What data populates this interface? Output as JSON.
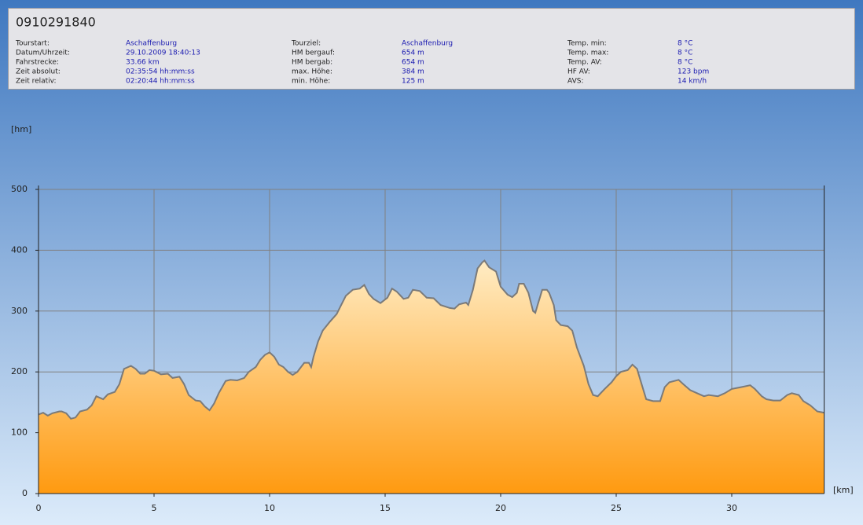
{
  "header": {
    "title": "0910291840",
    "info": [
      {
        "label": "Tourstart:",
        "value": "Aschaffenburg"
      },
      {
        "label": "Datum/Uhrzeit:",
        "value": "29.10.2009 18:40:13"
      },
      {
        "label": "Fahrstrecke:",
        "value": "33.66 km"
      },
      {
        "label": "Zeit absolut:",
        "value": "02:35:54 hh:mm:ss"
      },
      {
        "label": "Zeit relativ:",
        "value": "02:20:44 hh:mm:ss"
      },
      {
        "label": "Tourziel:",
        "value": "Aschaffenburg"
      },
      {
        "label": "HM bergauf:",
        "value": "654 m"
      },
      {
        "label": "HM bergab:",
        "value": "654 m"
      },
      {
        "label": "max. Höhe:",
        "value": "384 m"
      },
      {
        "label": "min. Höhe:",
        "value": "125 m"
      },
      {
        "label": "Temp. min:",
        "value": "8 °C"
      },
      {
        "label": "Temp. max:",
        "value": "8 °C"
      },
      {
        "label": "Temp. AV:",
        "value": "8 °C"
      },
      {
        "label": "HF AV:",
        "value": "123 bpm"
      },
      {
        "label": "AVS:",
        "value": "14 km/h"
      }
    ]
  },
  "chart_data": {
    "type": "area",
    "y_label": "[hm]",
    "x_label": "[km]",
    "color": "#ff9a10",
    "line_color": "#7a7a7a",
    "grid": true,
    "xlim": [
      0,
      34
    ],
    "ylim": [
      0,
      500
    ],
    "xticks": [
      0,
      5,
      10,
      15,
      20,
      25,
      30
    ],
    "yticks": [
      0,
      100,
      200,
      300,
      400,
      500
    ],
    "x": [
      0,
      0.2,
      0.4,
      0.6,
      0.9,
      1.0,
      1.2,
      1.4,
      1.6,
      1.8,
      2.1,
      2.3,
      2.5,
      2.8,
      3.0,
      3.3,
      3.5,
      3.7,
      4.0,
      4.2,
      4.4,
      4.6,
      4.8,
      5.0,
      5.3,
      5.6,
      5.8,
      6.1,
      6.3,
      6.5,
      6.8,
      7.0,
      7.2,
      7.4,
      7.6,
      7.8,
      8.1,
      8.3,
      8.6,
      8.9,
      9.1,
      9.4,
      9.6,
      9.8,
      10.0,
      10.2,
      10.4,
      10.6,
      10.8,
      11.0,
      11.2,
      11.5,
      11.7,
      11.8,
      11.9,
      12.1,
      12.3,
      12.6,
      12.9,
      13.1,
      13.3,
      13.6,
      13.9,
      14.1,
      14.3,
      14.5,
      14.8,
      15.1,
      15.3,
      15.5,
      15.8,
      16.0,
      16.2,
      16.5,
      16.8,
      17.1,
      17.4,
      17.8,
      18.0,
      18.2,
      18.5,
      18.6,
      18.8,
      19.0,
      19.2,
      19.3,
      19.5,
      19.8,
      20.0,
      20.3,
      20.5,
      20.7,
      20.8,
      21.0,
      21.2,
      21.4,
      21.5,
      21.6,
      21.8,
      22.0,
      22.1,
      22.3,
      22.4,
      22.6,
      22.9,
      23.1,
      23.3,
      23.6,
      23.8,
      24.0,
      24.2,
      24.5,
      24.8,
      25.0,
      25.2,
      25.5,
      25.7,
      25.9,
      26.1,
      26.3,
      26.6,
      26.9,
      27.1,
      27.3,
      27.7,
      27.9,
      28.2,
      28.5,
      28.8,
      29.0,
      29.4,
      29.7,
      30.0,
      30.4,
      30.8,
      31.0,
      31.3,
      31.5,
      31.8,
      32.1,
      32.4,
      32.6,
      32.9,
      33.1,
      33.4,
      33.7,
      34.0
    ],
    "values": [
      130,
      133,
      128,
      132,
      135,
      135,
      132,
      123,
      125,
      135,
      138,
      145,
      160,
      155,
      163,
      167,
      180,
      205,
      210,
      205,
      197,
      197,
      203,
      202,
      196,
      197,
      190,
      192,
      180,
      162,
      153,
      152,
      143,
      137,
      148,
      165,
      185,
      187,
      186,
      190,
      200,
      208,
      220,
      228,
      232,
      225,
      212,
      208,
      200,
      195,
      200,
      215,
      215,
      208,
      225,
      250,
      268,
      282,
      295,
      310,
      325,
      335,
      337,
      343,
      328,
      320,
      313,
      322,
      337,
      332,
      320,
      322,
      335,
      333,
      322,
      321,
      310,
      305,
      304,
      311,
      314,
      310,
      335,
      370,
      380,
      383,
      372,
      365,
      340,
      327,
      323,
      330,
      345,
      345,
      330,
      300,
      297,
      310,
      335,
      335,
      330,
      310,
      285,
      277,
      275,
      268,
      240,
      210,
      180,
      162,
      160,
      172,
      183,
      193,
      200,
      203,
      212,
      205,
      180,
      155,
      152,
      152,
      175,
      183,
      187,
      180,
      170,
      165,
      160,
      162,
      160,
      165,
      172,
      175,
      178,
      172,
      160,
      155,
      153,
      153,
      162,
      165,
      162,
      152,
      145,
      135,
      133
    ]
  }
}
